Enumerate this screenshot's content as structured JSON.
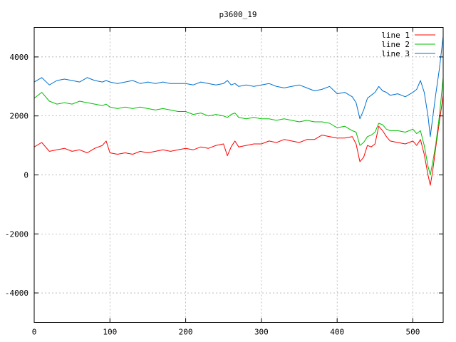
{
  "chart_data": {
    "type": "line",
    "title": "p3600_19",
    "xlim": [
      0,
      540
    ],
    "ylim": [
      -5000,
      5000
    ],
    "x_ticks": [
      0,
      100,
      200,
      300,
      400,
      500
    ],
    "y_ticks": [
      -4000,
      -2000,
      0,
      2000,
      4000
    ],
    "grid": true,
    "legend_position": "top-right",
    "x": [
      0,
      10,
      20,
      30,
      40,
      50,
      60,
      70,
      80,
      90,
      95,
      100,
      110,
      120,
      130,
      140,
      150,
      160,
      170,
      180,
      190,
      200,
      210,
      220,
      230,
      240,
      250,
      255,
      260,
      265,
      270,
      280,
      290,
      300,
      310,
      320,
      330,
      340,
      350,
      360,
      370,
      380,
      390,
      400,
      410,
      420,
      425,
      430,
      435,
      440,
      445,
      450,
      455,
      460,
      465,
      470,
      480,
      490,
      500,
      505,
      510,
      515,
      520,
      523,
      526,
      530,
      535,
      540
    ],
    "series": [
      {
        "name": "line 1",
        "color": "#ff0000",
        "values": [
          950,
          1100,
          800,
          850,
          900,
          800,
          850,
          750,
          900,
          1000,
          1150,
          750,
          700,
          750,
          700,
          800,
          750,
          800,
          850,
          800,
          850,
          900,
          850,
          950,
          900,
          1000,
          1050,
          650,
          950,
          1150,
          950,
          1000,
          1050,
          1050,
          1150,
          1100,
          1200,
          1150,
          1100,
          1200,
          1200,
          1350,
          1300,
          1250,
          1250,
          1300,
          1050,
          450,
          600,
          1000,
          950,
          1050,
          1650,
          1500,
          1300,
          1150,
          1100,
          1050,
          1150,
          1000,
          1200,
          700,
          0,
          -350,
          100,
          900,
          1800,
          2700
        ]
      },
      {
        "name": "line 2",
        "color": "#00c000",
        "values": [
          2600,
          2800,
          2500,
          2400,
          2450,
          2400,
          2500,
          2450,
          2400,
          2350,
          2400,
          2300,
          2250,
          2300,
          2250,
          2300,
          2250,
          2200,
          2250,
          2200,
          2150,
          2150,
          2050,
          2100,
          2000,
          2050,
          2000,
          1950,
          2050,
          2100,
          1950,
          1900,
          1950,
          1900,
          1900,
          1850,
          1900,
          1850,
          1800,
          1850,
          1800,
          1800,
          1750,
          1600,
          1650,
          1500,
          1450,
          1000,
          1100,
          1300,
          1350,
          1450,
          1750,
          1700,
          1550,
          1500,
          1500,
          1450,
          1550,
          1400,
          1500,
          1000,
          300,
          0,
          400,
          1000,
          2000,
          3300
        ]
      },
      {
        "name": "line 3",
        "color": "#0070d0",
        "values": [
          3150,
          3300,
          3050,
          3200,
          3250,
          3200,
          3150,
          3300,
          3200,
          3150,
          3200,
          3150,
          3100,
          3150,
          3200,
          3100,
          3150,
          3100,
          3150,
          3100,
          3100,
          3100,
          3050,
          3150,
          3100,
          3050,
          3100,
          3200,
          3050,
          3100,
          3000,
          3050,
          3000,
          3050,
          3100,
          3000,
          2950,
          3000,
          3050,
          2950,
          2850,
          2900,
          3000,
          2750,
          2800,
          2650,
          2450,
          1900,
          2200,
          2600,
          2700,
          2800,
          3000,
          2850,
          2800,
          2700,
          2750,
          2650,
          2800,
          2900,
          3200,
          2800,
          2000,
          1300,
          1900,
          2700,
          3600,
          4700
        ]
      }
    ]
  }
}
